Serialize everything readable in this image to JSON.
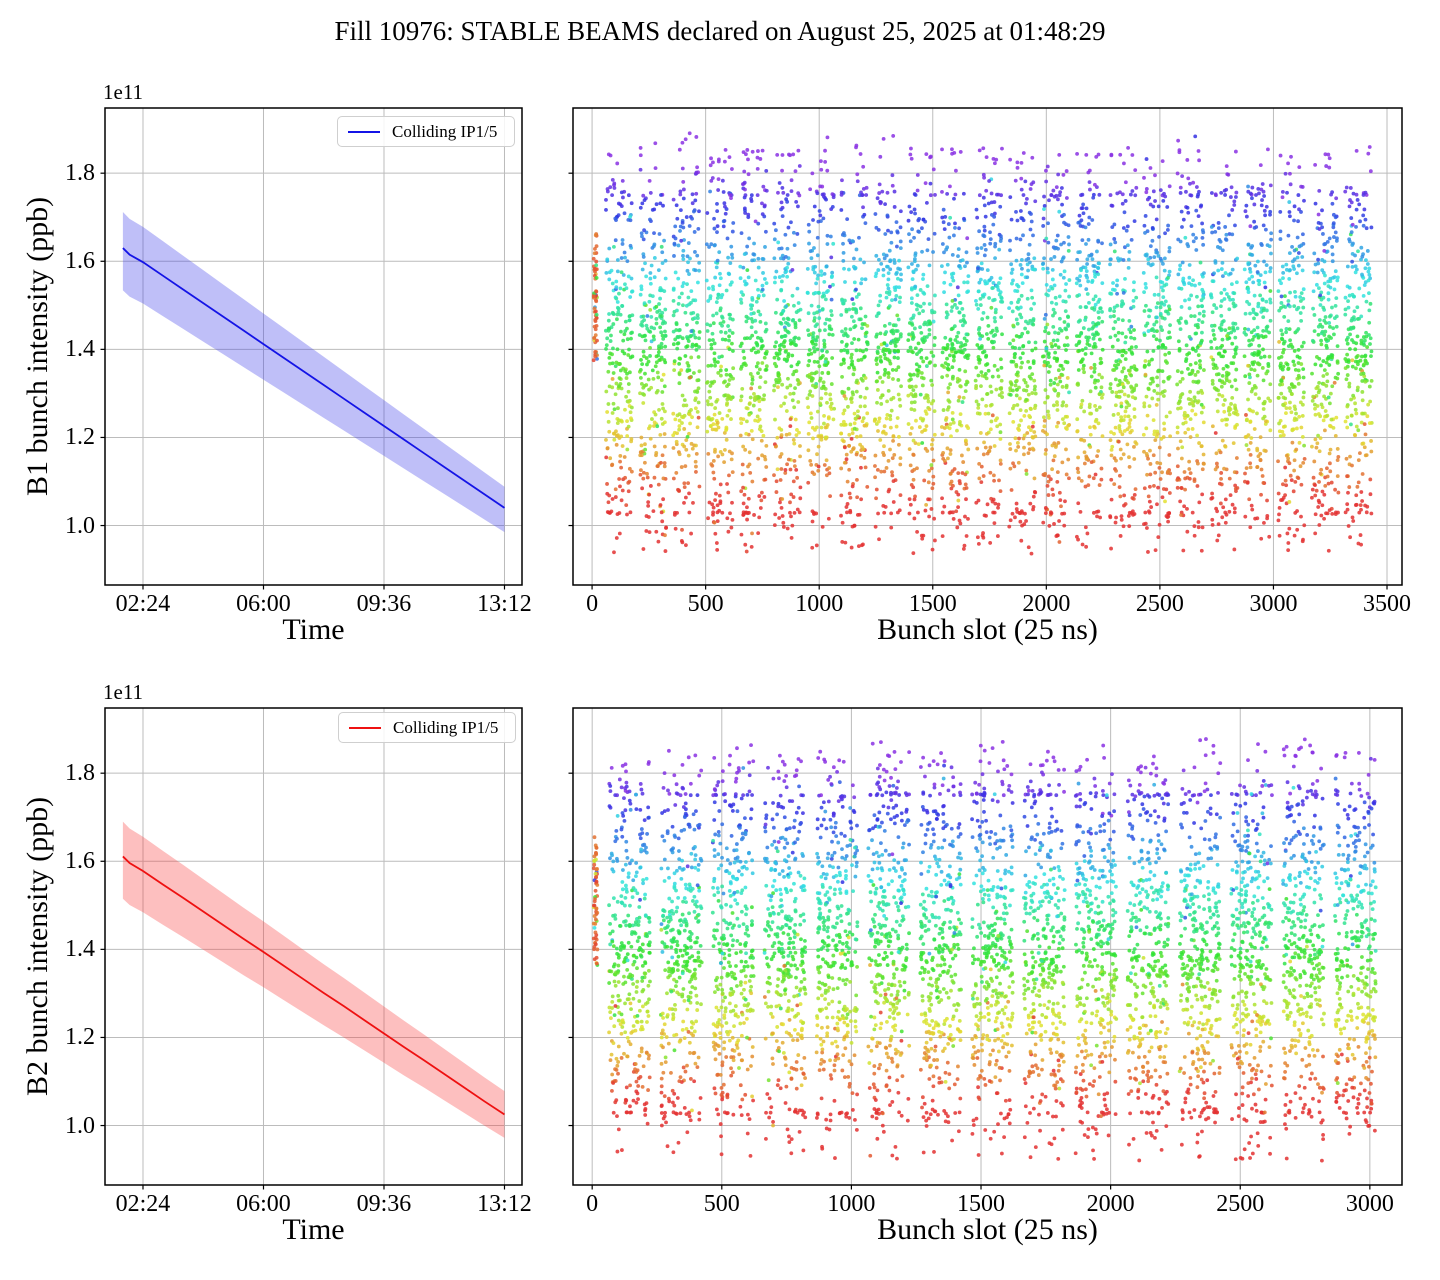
{
  "figure": {
    "title": "Fill 10976: STABLE BEAMS declared on August 25, 2025 at 01:48:29",
    "background": "#ffffff",
    "grid_color": "#bcbcbc",
    "spine_color": "#000000",
    "text_color": "#000000"
  },
  "chart_data": [
    {
      "id": "b1_time",
      "type": "line",
      "panel": "top-left",
      "xlabel": "Time",
      "ylabel": "B1 bunch intensity (ppb)",
      "offset_text": "1e11",
      "legend": {
        "label": "Colliding IP1/5",
        "position": "upper right"
      },
      "line_color": "#1414e6",
      "band_color": "rgba(60,60,235,0.33)",
      "xlim": [
        1.265,
        13.723
      ],
      "ylim": [
        0.865,
        1.948
      ],
      "grid": true,
      "xticks": [
        {
          "value": 2.4,
          "label": "02:24"
        },
        {
          "value": 6.0,
          "label": "06:00"
        },
        {
          "value": 9.6,
          "label": "09:36"
        },
        {
          "value": 13.2,
          "label": "13:12"
        }
      ],
      "yticks": [
        {
          "value": 1.0,
          "label": "1.0"
        },
        {
          "value": 1.2,
          "label": "1.2"
        },
        {
          "value": 1.4,
          "label": "1.4"
        },
        {
          "value": 1.6,
          "label": "1.6"
        },
        {
          "value": 1.8,
          "label": "1.8"
        }
      ],
      "show_ytick_labels": true,
      "x_hours": [
        1.8,
        2.0,
        2.4,
        3.0,
        3.6,
        4.2,
        4.8,
        5.4,
        6.0,
        6.6,
        7.2,
        7.8,
        8.4,
        9.0,
        9.6,
        10.2,
        10.8,
        11.4,
        12.0,
        12.6,
        13.2
      ],
      "y_values": [
        1.63,
        1.615,
        1.598,
        1.567,
        1.536,
        1.505,
        1.474,
        1.443,
        1.412,
        1.381,
        1.35,
        1.319,
        1.288,
        1.257,
        1.226,
        1.195,
        1.164,
        1.133,
        1.102,
        1.071,
        1.04
      ],
      "band": {
        "upper_start": 0.082,
        "upper_end": 0.048,
        "lower_start": 0.096,
        "lower_end": 0.055
      },
      "units": "1e11 ppb"
    },
    {
      "id": "b1_slots",
      "type": "scatter",
      "panel": "top-right",
      "xlabel": "Bunch slot (25 ns)",
      "xlim": [
        -84,
        3566
      ],
      "ylim": [
        0.865,
        1.948
      ],
      "grid": true,
      "xticks": [
        {
          "value": 0,
          "label": "0"
        },
        {
          "value": 500,
          "label": "500"
        },
        {
          "value": 1000,
          "label": "1000"
        },
        {
          "value": 1500,
          "label": "1500"
        },
        {
          "value": 2000,
          "label": "2000"
        },
        {
          "value": 2500,
          "label": "2500"
        },
        {
          "value": 3000,
          "label": "3000"
        },
        {
          "value": 3500,
          "label": "3500"
        }
      ],
      "yticks": [
        {
          "value": 1.0,
          "label": "1.0"
        },
        {
          "value": 1.2,
          "label": "1.2"
        },
        {
          "value": 1.4,
          "label": "1.4"
        },
        {
          "value": 1.6,
          "label": "1.6"
        },
        {
          "value": 1.8,
          "label": "1.8"
        }
      ],
      "show_ytick_labels": false,
      "trains": [
        [
          60,
          178
        ],
        [
          208,
          326
        ],
        [
          356,
          474
        ],
        [
          504,
          622
        ],
        [
          652,
          770
        ],
        [
          800,
          918
        ],
        [
          948,
          1066
        ],
        [
          1096,
          1214
        ],
        [
          1244,
          1362
        ],
        [
          1392,
          1510
        ],
        [
          1540,
          1658
        ],
        [
          1688,
          1806
        ],
        [
          1836,
          1954
        ],
        [
          1984,
          2102
        ],
        [
          2132,
          2250
        ],
        [
          2280,
          2398
        ],
        [
          2428,
          2546
        ],
        [
          2576,
          2694
        ],
        [
          2724,
          2842
        ],
        [
          2872,
          2990
        ],
        [
          3020,
          3138
        ],
        [
          3168,
          3286
        ],
        [
          3316,
          3434
        ]
      ],
      "points_per_train": 235,
      "y_core": [
        1.03,
        1.75
      ],
      "y_extent": [
        0.935,
        1.9
      ],
      "lead_cluster": {
        "x_range": [
          6,
          22
        ],
        "n": 60,
        "y_range": [
          1.37,
          1.67
        ]
      },
      "color_scale": {
        "map": "rainbow",
        "low_color": "red",
        "high_color": "violet",
        "domain": [
          1.06,
          1.8
        ]
      },
      "marker_size_px": 1.9,
      "alpha": 0.85,
      "seed": 10976
    },
    {
      "id": "b2_time",
      "type": "line",
      "panel": "bottom-left",
      "xlabel": "Time",
      "ylabel": "B2 bunch intensity (ppb)",
      "offset_text": "1e11",
      "legend": {
        "label": "Colliding IP1/5",
        "position": "upper right"
      },
      "line_color": "#ee1111",
      "band_color": "rgba(250,60,60,0.33)",
      "xlim": [
        1.265,
        13.723
      ],
      "ylim": [
        0.865,
        1.948
      ],
      "grid": true,
      "xticks": [
        {
          "value": 2.4,
          "label": "02:24"
        },
        {
          "value": 6.0,
          "label": "06:00"
        },
        {
          "value": 9.6,
          "label": "09:36"
        },
        {
          "value": 13.2,
          "label": "13:12"
        }
      ],
      "yticks": [
        {
          "value": 1.0,
          "label": "1.0"
        },
        {
          "value": 1.2,
          "label": "1.2"
        },
        {
          "value": 1.4,
          "label": "1.4"
        },
        {
          "value": 1.6,
          "label": "1.6"
        },
        {
          "value": 1.8,
          "label": "1.8"
        }
      ],
      "show_ytick_labels": true,
      "x_hours": [
        1.8,
        2.0,
        2.4,
        3.0,
        3.6,
        4.2,
        4.8,
        5.4,
        6.0,
        6.6,
        7.2,
        7.8,
        8.4,
        9.0,
        9.6,
        10.2,
        10.8,
        11.4,
        12.0,
        12.6,
        13.2
      ],
      "y_values": [
        1.611,
        1.596,
        1.578,
        1.547,
        1.517,
        1.486,
        1.455,
        1.424,
        1.394,
        1.363,
        1.332,
        1.301,
        1.271,
        1.24,
        1.209,
        1.178,
        1.148,
        1.117,
        1.086,
        1.055,
        1.025
      ],
      "band": {
        "upper_start": 0.079,
        "upper_end": 0.053,
        "lower_start": 0.096,
        "lower_end": 0.053
      },
      "units": "1e11 ppb"
    },
    {
      "id": "b2_slots",
      "type": "scatter",
      "panel": "bottom-right",
      "xlabel": "Bunch slot (25 ns)",
      "xlim": [
        -74,
        3124
      ],
      "ylim": [
        0.865,
        1.948
      ],
      "grid": true,
      "xticks": [
        {
          "value": 0,
          "label": "0"
        },
        {
          "value": 500,
          "label": "500"
        },
        {
          "value": 1000,
          "label": "1000"
        },
        {
          "value": 1500,
          "label": "1500"
        },
        {
          "value": 2000,
          "label": "2000"
        },
        {
          "value": 2500,
          "label": "2500"
        },
        {
          "value": 3000,
          "label": "3000"
        }
      ],
      "yticks": [
        {
          "value": 1.0,
          "label": "1.0"
        },
        {
          "value": 1.2,
          "label": "1.2"
        },
        {
          "value": 1.4,
          "label": "1.4"
        },
        {
          "value": 1.6,
          "label": "1.6"
        },
        {
          "value": 1.8,
          "label": "1.8"
        }
      ],
      "show_ytick_labels": false,
      "trains": [
        [
          65,
          223
        ],
        [
          265,
          423
        ],
        [
          465,
          623
        ],
        [
          665,
          823
        ],
        [
          865,
          1023
        ],
        [
          1065,
          1223
        ],
        [
          1265,
          1423
        ],
        [
          1465,
          1623
        ],
        [
          1665,
          1823
        ],
        [
          1865,
          2023
        ],
        [
          2065,
          2223
        ],
        [
          2265,
          2423
        ],
        [
          2465,
          2623
        ],
        [
          2665,
          2823
        ],
        [
          2865,
          3023
        ]
      ],
      "points_per_train": 355,
      "y_core": [
        1.03,
        1.75
      ],
      "y_extent": [
        0.92,
        1.89
      ],
      "lead_cluster": {
        "x_range": [
          6,
          20
        ],
        "n": 60,
        "y_range": [
          1.36,
          1.66
        ]
      },
      "color_scale": {
        "map": "rainbow",
        "low_color": "red",
        "high_color": "violet",
        "domain": [
          1.06,
          1.8
        ]
      },
      "marker_size_px": 1.9,
      "alpha": 0.85,
      "seed": 8825
    }
  ]
}
